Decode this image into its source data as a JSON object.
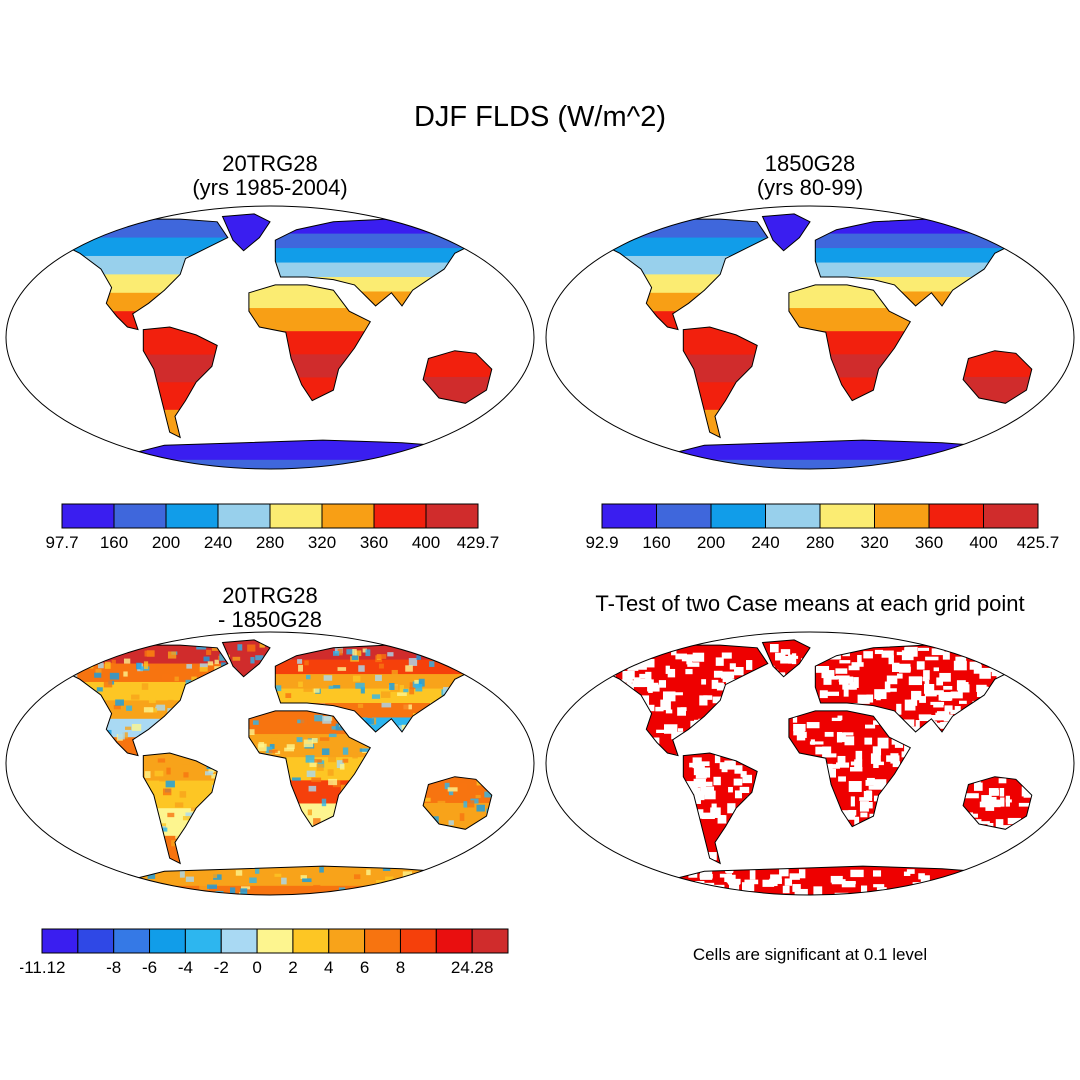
{
  "main_title": "DJF FLDS (W/m^2)",
  "panels": [
    {
      "title_line1": "20TRG28",
      "title_line2": "(yrs 1985-2004)",
      "field": "flds-mean"
    },
    {
      "title_line1": "1850G28",
      "title_line2": "(yrs 80-99)",
      "field": "flds-mean"
    },
    {
      "title_line1": "20TRG28",
      "title_line2": "- 1850G28",
      "field": "difference"
    },
    {
      "title_line1": "T-Test of two Case means at each grid point",
      "title_line2": "",
      "field": "significance"
    }
  ],
  "colorbars": [
    {
      "colors": [
        "#3a1ef0",
        "#3f67dc",
        "#119de9",
        "#98d0ec",
        "#fbec72",
        "#f89f15",
        "#f2200d",
        "#d02c2c"
      ],
      "labels": [
        "97.7",
        "160",
        "200",
        "240",
        "280",
        "320",
        "360",
        "400",
        "429.7"
      ]
    },
    {
      "colors": [
        "#3a1ef0",
        "#3f67dc",
        "#119de9",
        "#98d0ec",
        "#fbec72",
        "#f89f15",
        "#f2200d",
        "#d02c2c"
      ],
      "labels": [
        "92.9",
        "160",
        "200",
        "240",
        "280",
        "320",
        "360",
        "400",
        "425.7"
      ]
    },
    {
      "colors": [
        "#3a1ef0",
        "#2f48e6",
        "#3579e6",
        "#119de9",
        "#2db6ef",
        "#a9d9f3",
        "#fdf58f",
        "#fdc624",
        "#f8a31a",
        "#f77410",
        "#f5400b",
        "#e90f0f",
        "#d02c2c"
      ],
      "labels": [
        "-11.12",
        "",
        "-8",
        "-6",
        "-4",
        "-2",
        "0",
        "2",
        "4",
        "6",
        "8",
        "",
        "24.28"
      ]
    }
  ],
  "significance_note": "Cells are significant at 0.1 level",
  "significance_color": "#ee0000"
}
